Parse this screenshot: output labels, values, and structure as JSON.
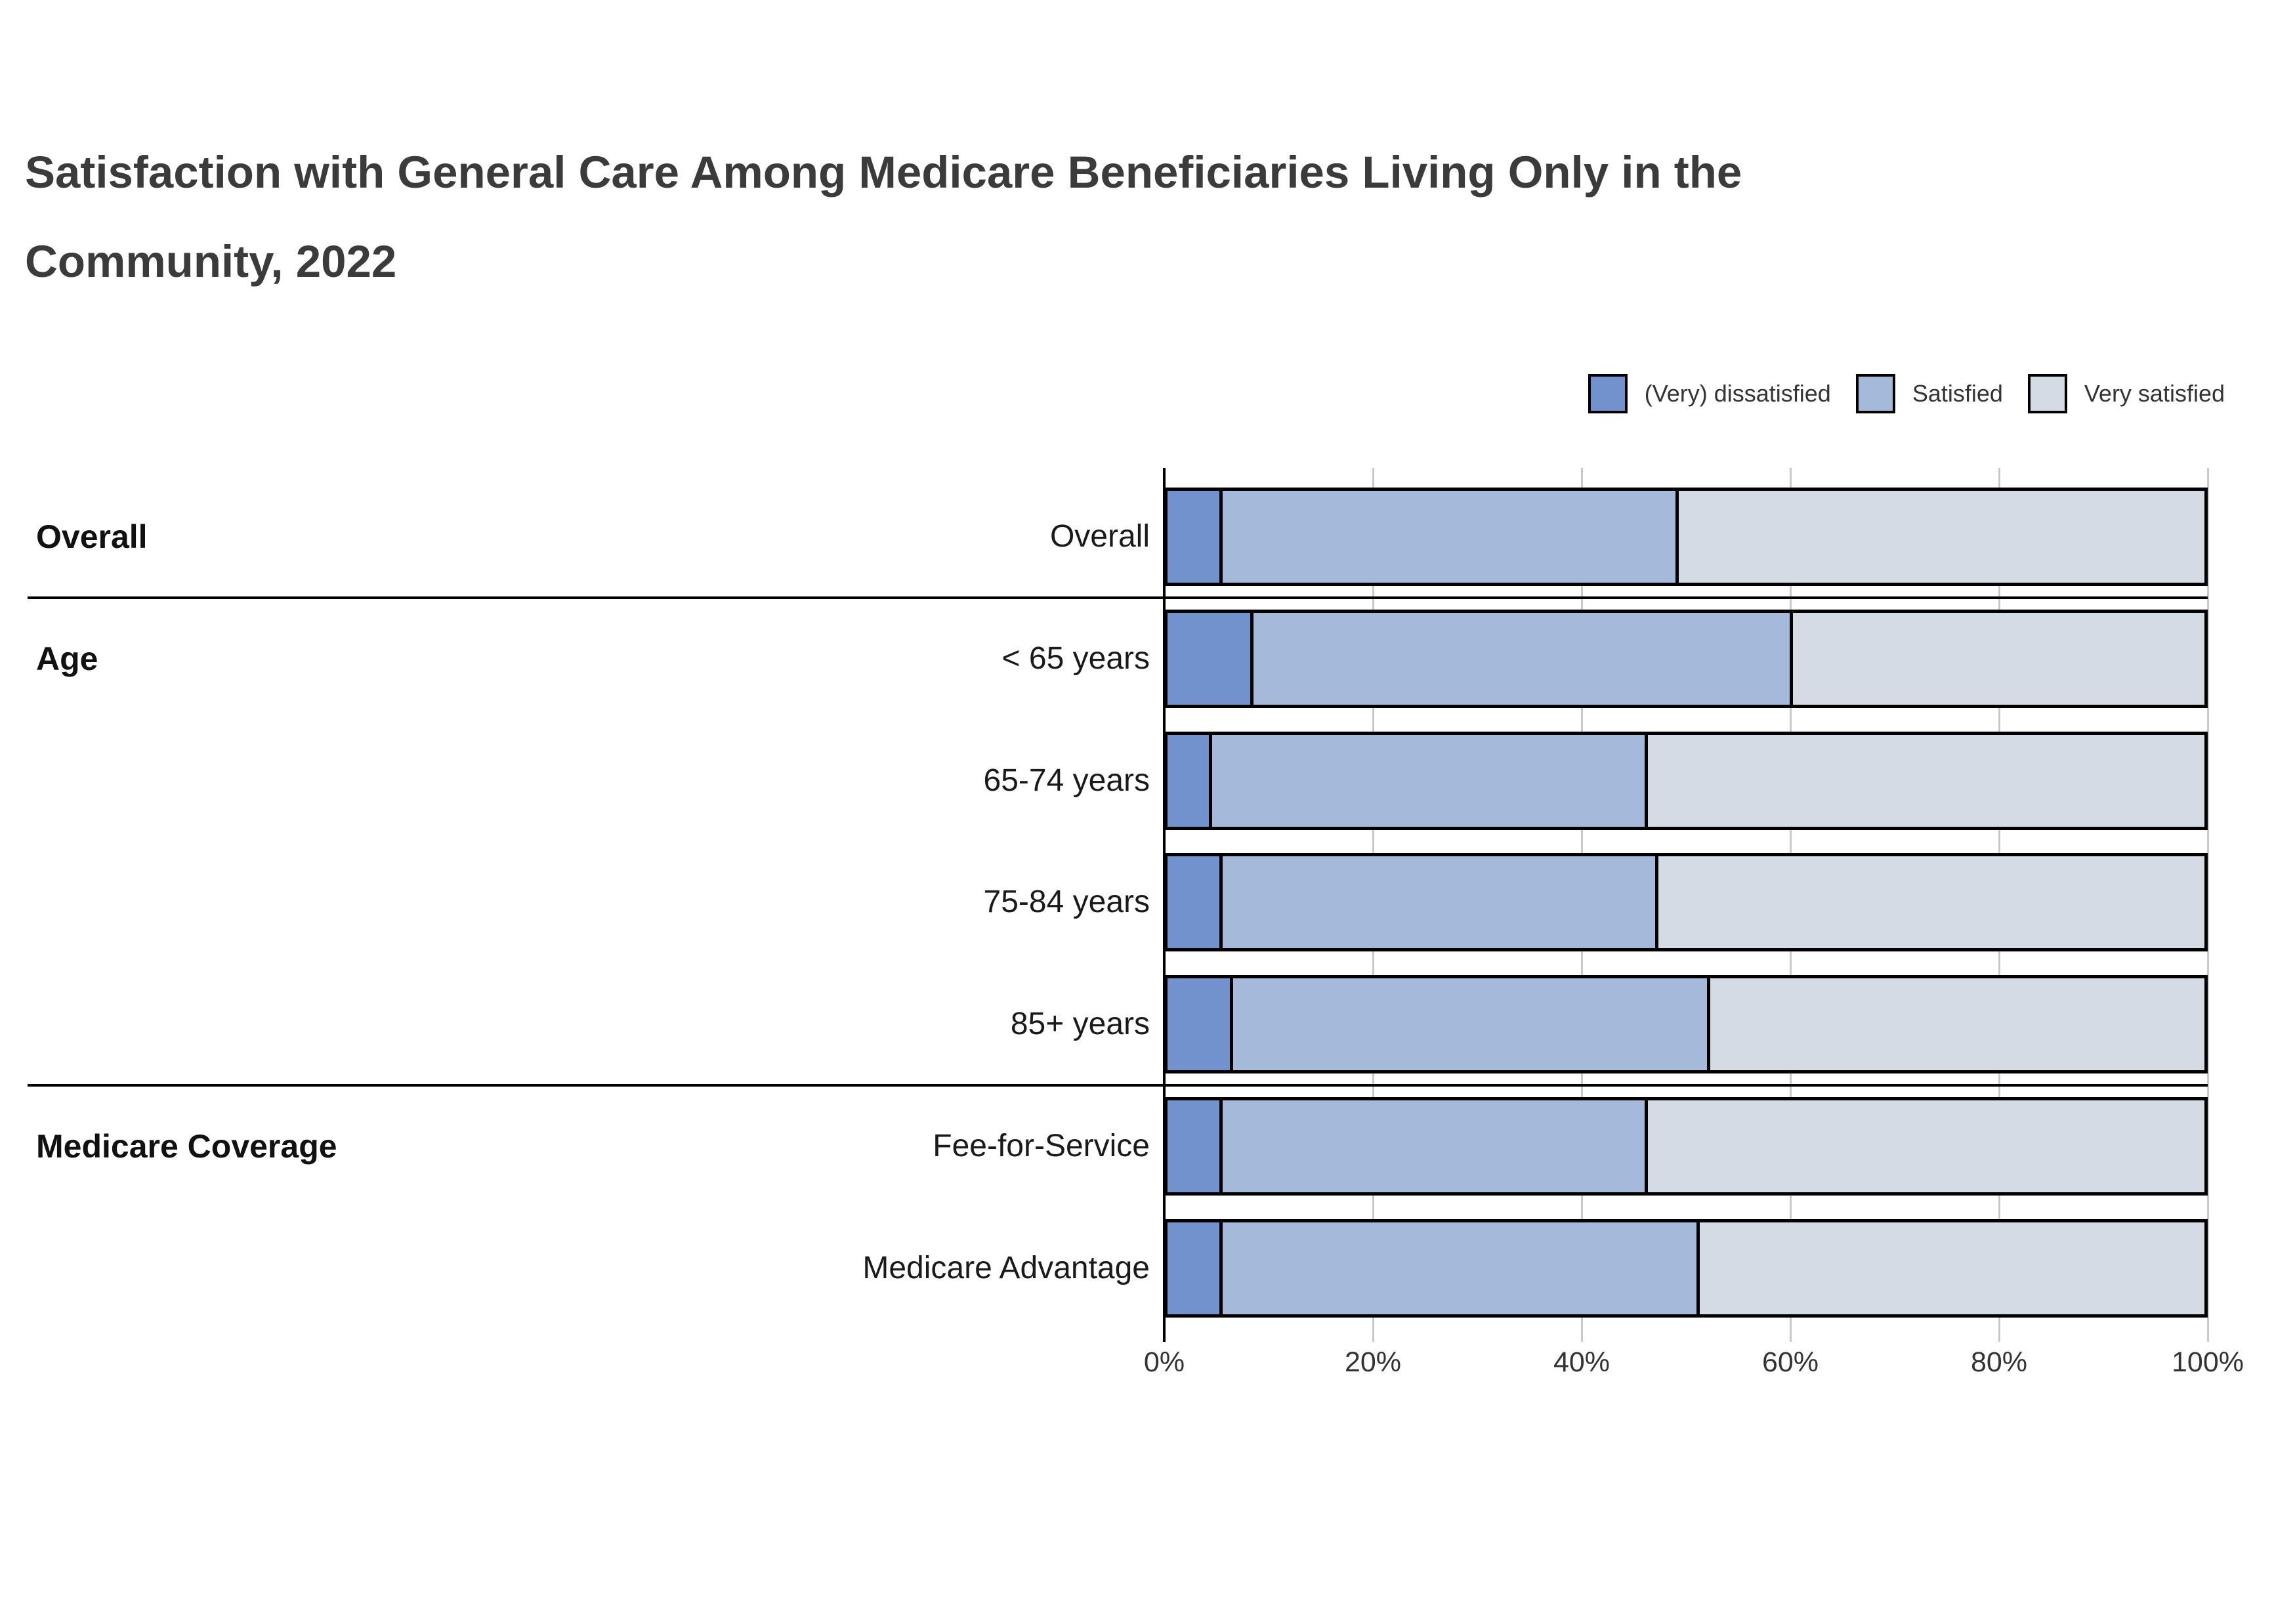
{
  "title": {
    "line1": "Satisfaction with General Care Among Medicare Beneficiaries Living Only in the",
    "line2": "Community, 2022"
  },
  "legend": {
    "items": [
      {
        "label": "(Very) dissatisfied",
        "color": "#7292ce"
      },
      {
        "label": "Satisfied",
        "color": "#a5b9da"
      },
      {
        "label": "Very satisfied",
        "color": "#d5dbe4"
      }
    ]
  },
  "chart_data": {
    "type": "bar",
    "orientation": "horizontal",
    "stacked": true,
    "unit": "percent",
    "title": "Satisfaction with General Care Among Medicare Beneficiaries Living Only in the Community, 2022",
    "categories": [
      "Overall",
      "< 65 years",
      "65-74 years",
      "75-84 years",
      "85+ years",
      "Fee-for-Service",
      "Medicare Advantage"
    ],
    "groups": [
      {
        "label": "Overall",
        "categories": [
          "Overall"
        ]
      },
      {
        "label": "Age",
        "categories": [
          "< 65 years",
          "65-74 years",
          "75-84 years",
          "85+ years"
        ]
      },
      {
        "label": "Medicare Coverage",
        "categories": [
          "Fee-for-Service",
          "Medicare Advantage"
        ]
      }
    ],
    "series": [
      {
        "name": "(Very) dissatisfied",
        "color": "#7292ce",
        "values": [
          5,
          8,
          4,
          5,
          6,
          5,
          5
        ]
      },
      {
        "name": "Satisfied",
        "color": "#a5b9da",
        "values": [
          44,
          52,
          42,
          42,
          46,
          41,
          46
        ]
      },
      {
        "name": "Very satisfied",
        "color": "#d5dbe4",
        "values": [
          51,
          40,
          54,
          53,
          48,
          54,
          49
        ]
      }
    ],
    "x_axis": {
      "range": [
        0,
        100
      ],
      "ticks": [
        0,
        20,
        40,
        60,
        80,
        100
      ],
      "tick_labels": [
        "0%",
        "20%",
        "40%",
        "60%",
        "80%",
        "100%"
      ]
    },
    "grid": true,
    "legend_position": "top-right"
  }
}
